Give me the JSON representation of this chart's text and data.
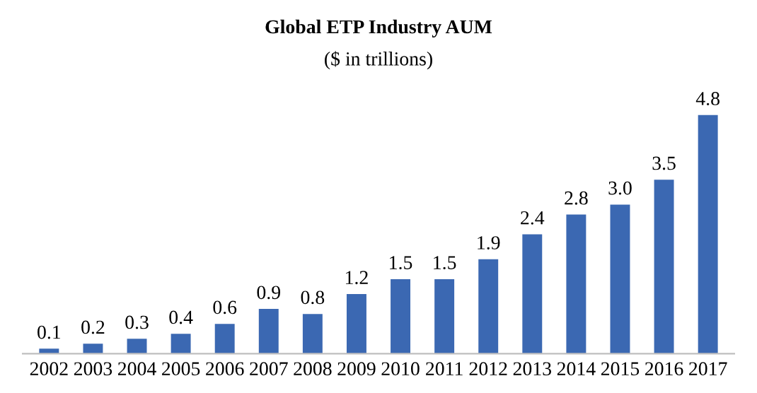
{
  "chart_data": {
    "type": "bar",
    "title": "Global ETP Industry AUM",
    "subtitle": "($ in trillions)",
    "categories": [
      "2002",
      "2003",
      "2004",
      "2005",
      "2006",
      "2007",
      "2008",
      "2009",
      "2010",
      "2011",
      "2012",
      "2013",
      "2014",
      "2015",
      "2016",
      "2017"
    ],
    "values": [
      0.1,
      0.2,
      0.3,
      0.4,
      0.6,
      0.9,
      0.8,
      1.2,
      1.5,
      1.5,
      1.9,
      2.4,
      2.8,
      3.0,
      3.5,
      4.8
    ],
    "value_labels": [
      "0.1",
      "0.2",
      "0.3",
      "0.4",
      "0.6",
      "0.9",
      "0.8",
      "1.2",
      "1.5",
      "1.5",
      "1.9",
      "2.4",
      "2.8",
      "3.0",
      "3.5",
      "4.8"
    ],
    "color": "#3b68b2",
    "grid": false,
    "legend": false
  }
}
